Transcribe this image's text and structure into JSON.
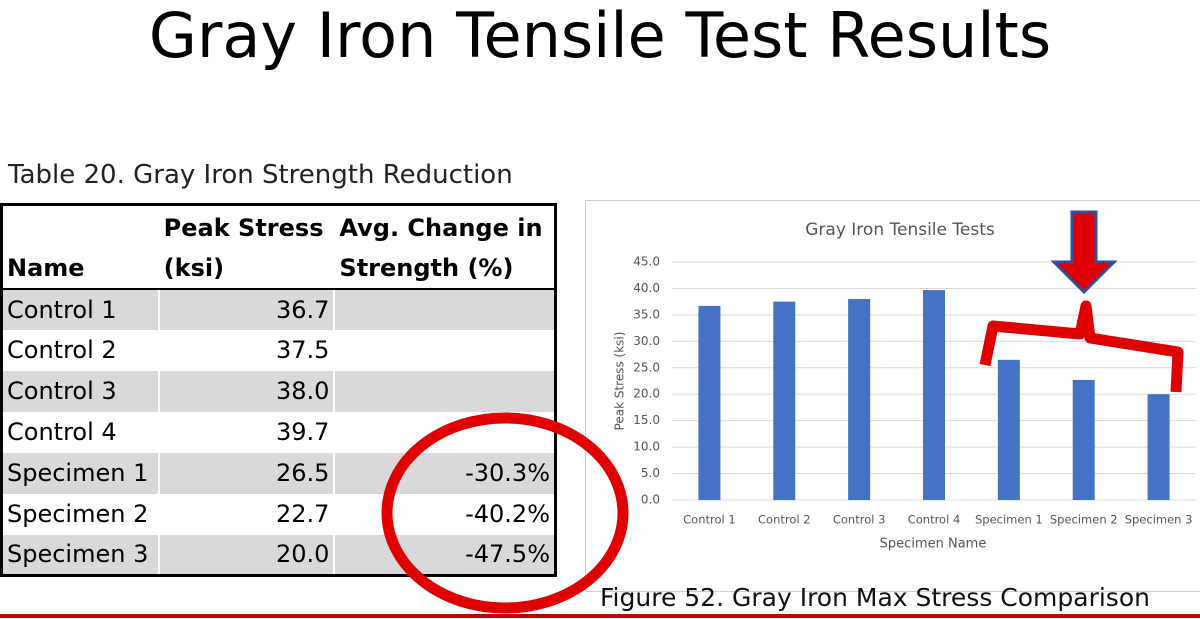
{
  "slide_title": "Gray Iron Tensile Test Results",
  "table": {
    "caption": "Table 20. Gray Iron Strength Reduction",
    "headers": [
      [
        "Name"
      ],
      [
        "Peak Stress",
        "(ksi)"
      ],
      [
        "Avg. Change in",
        "Strength (%)"
      ]
    ],
    "rows": [
      [
        "Control 1",
        "36.7",
        null
      ],
      [
        "Control 2",
        "37.5",
        null
      ],
      [
        "Control 3",
        "38.0",
        null
      ],
      [
        "Control 4",
        "39.7",
        null
      ],
      [
        "Specimen 1",
        "26.5",
        "-30.3%"
      ],
      [
        "Specimen 2",
        "22.7",
        "-40.2%"
      ],
      [
        "Specimen 3",
        "20.0",
        "-47.5%"
      ]
    ]
  },
  "chart_data": {
    "type": "bar",
    "title": "Gray Iron Tensile Tests",
    "x_label": "Specimen Name",
    "y_label": "Peak Stress (ksi)",
    "categories": [
      "Control 1",
      "Control 2",
      "Control 3",
      "Control 4",
      "Specimen 1",
      "Specimen 2",
      "Specimen 3"
    ],
    "values": [
      36.7,
      37.5,
      38.0,
      39.7,
      26.5,
      22.7,
      20.0
    ],
    "color": "#4472c4",
    "ylim": [
      0,
      45
    ],
    "yticks": [
      {
        "value": 0,
        "label": "0.0"
      },
      {
        "value": 5,
        "label": "5.0"
      },
      {
        "value": 10,
        "label": "10.0"
      },
      {
        "value": 15,
        "label": "15.0"
      },
      {
        "value": 20,
        "label": "20.0"
      },
      {
        "value": 25,
        "label": "25.0"
      },
      {
        "value": 30,
        "label": "30.0"
      },
      {
        "value": 35,
        "label": "35.0"
      },
      {
        "value": 40,
        "label": "40.0"
      },
      {
        "value": 45,
        "label": "45.0"
      }
    ],
    "grid": true
  },
  "figure_caption": "Figure 52. Gray Iron Max Stress Comparison"
}
